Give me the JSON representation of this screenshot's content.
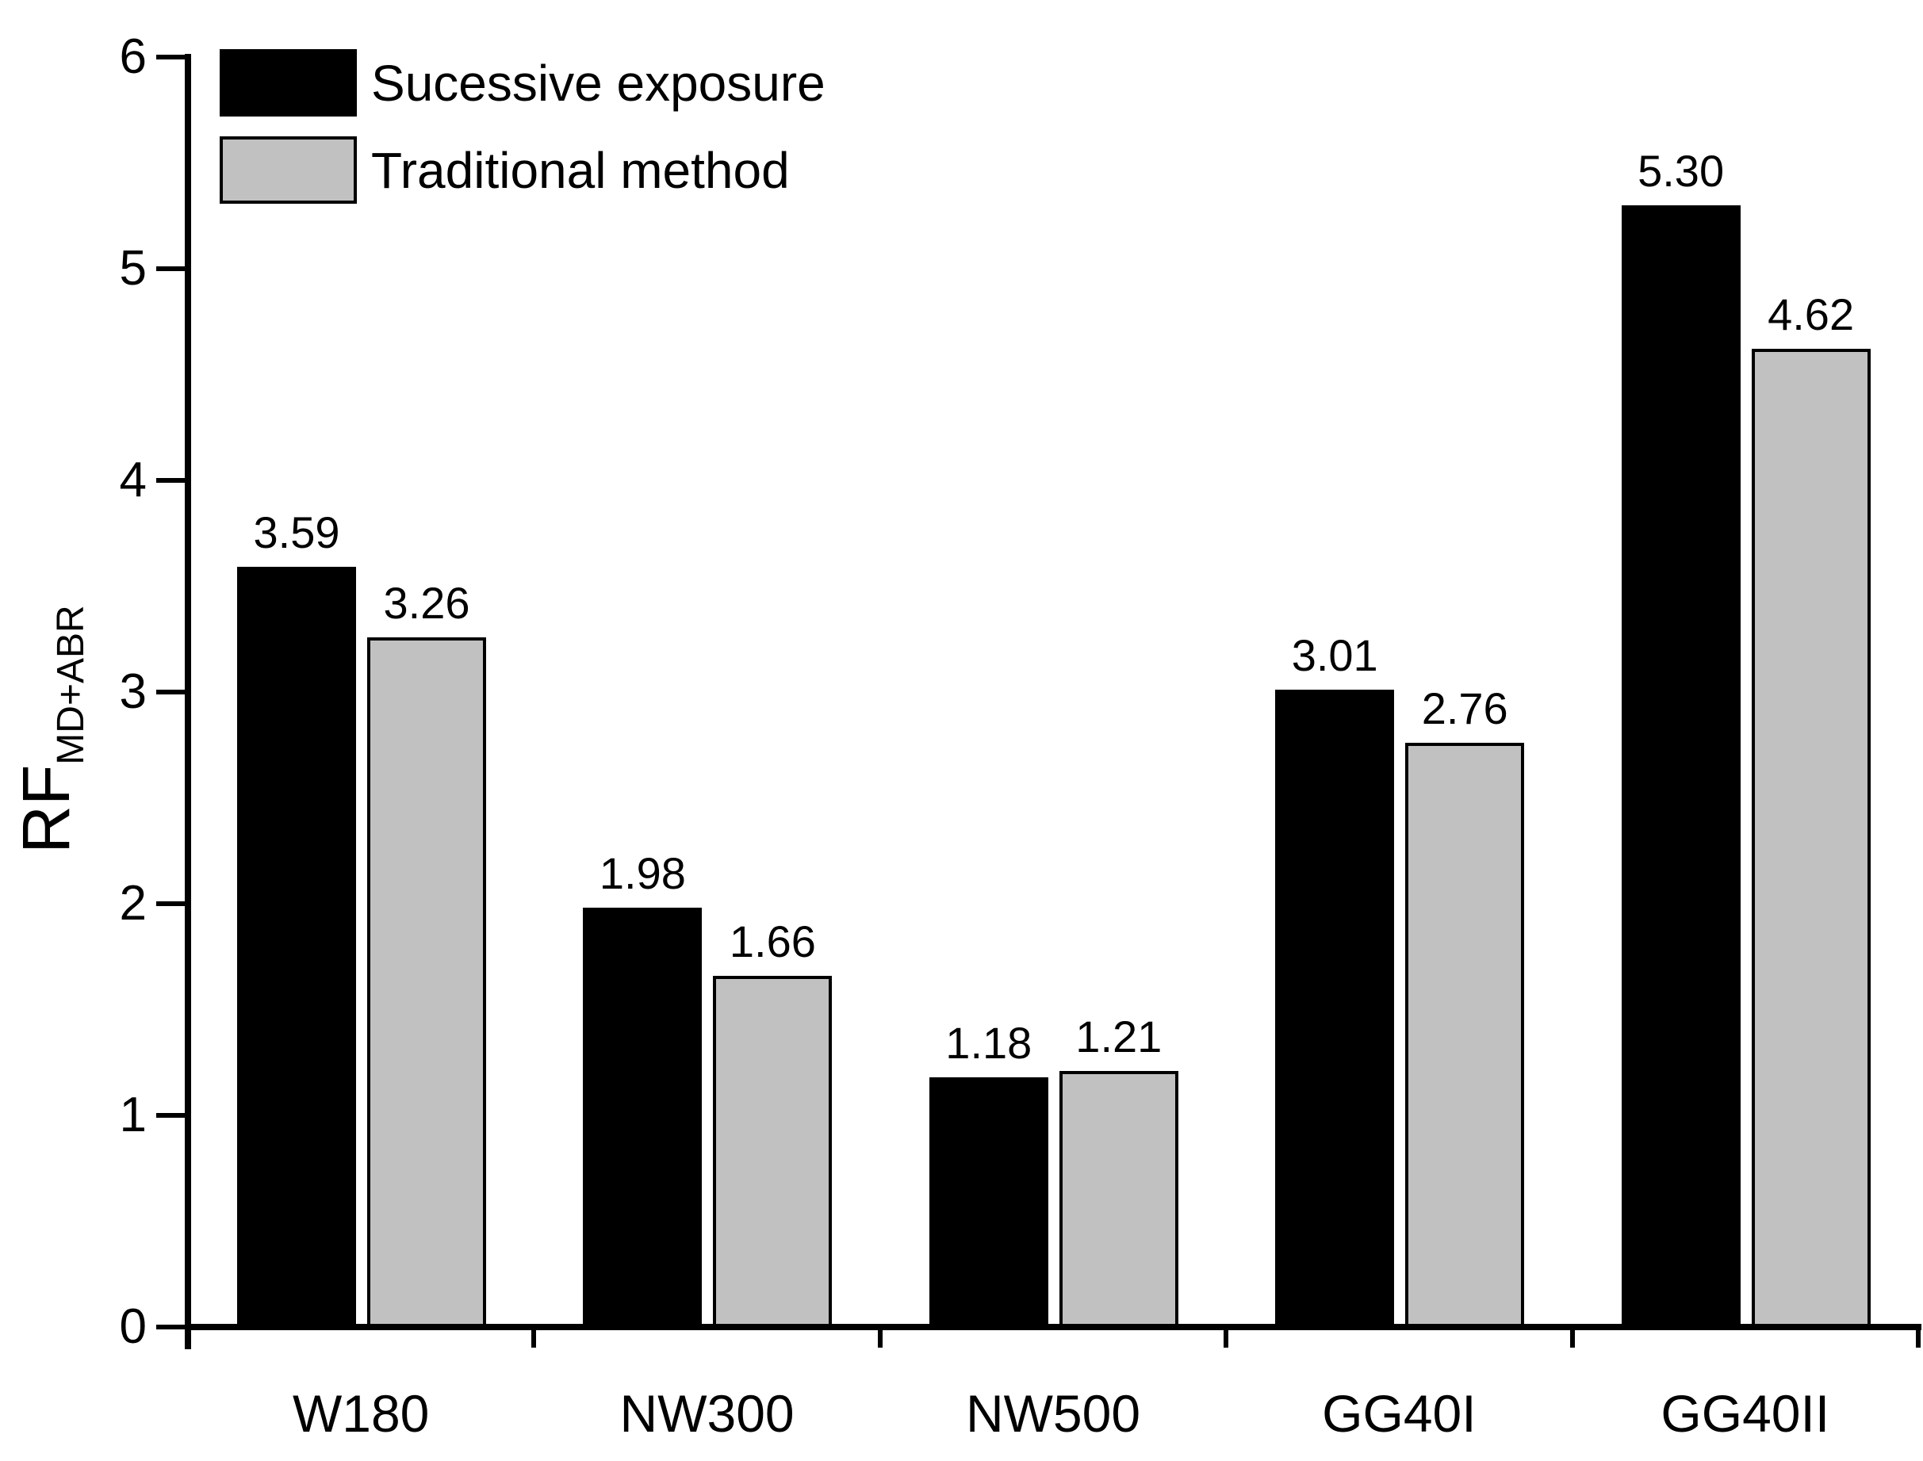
{
  "figure": {
    "background_color": "#ffffff",
    "axis_color": "#000000"
  },
  "chart_data": {
    "type": "bar",
    "title": "",
    "categories": [
      "W180",
      "NW300",
      "NW500",
      "GG40I",
      "GG40II"
    ],
    "series": [
      {
        "name": "Sucessive exposure",
        "color": "#000000",
        "values": [
          3.59,
          1.98,
          1.18,
          3.01,
          5.3
        ],
        "value_labels": [
          "3.59",
          "1.98",
          "1.18",
          "3.01",
          "5.30"
        ]
      },
      {
        "name": "Traditional method",
        "color": "#c1c1c1",
        "values": [
          3.26,
          1.66,
          1.21,
          2.76,
          4.62
        ],
        "value_labels": [
          "3.26",
          "1.66",
          "1.21",
          "2.76",
          "4.62"
        ]
      }
    ],
    "ylabel_main": "RF",
    "ylabel_sub": "MD+ABR",
    "xlabel": "",
    "ylim": [
      0,
      6
    ],
    "yticks": [
      "0",
      "1",
      "2",
      "3",
      "4",
      "5",
      "6"
    ],
    "grid": false,
    "legend_position": "top-left",
    "bar_value_labels_shown": true
  }
}
